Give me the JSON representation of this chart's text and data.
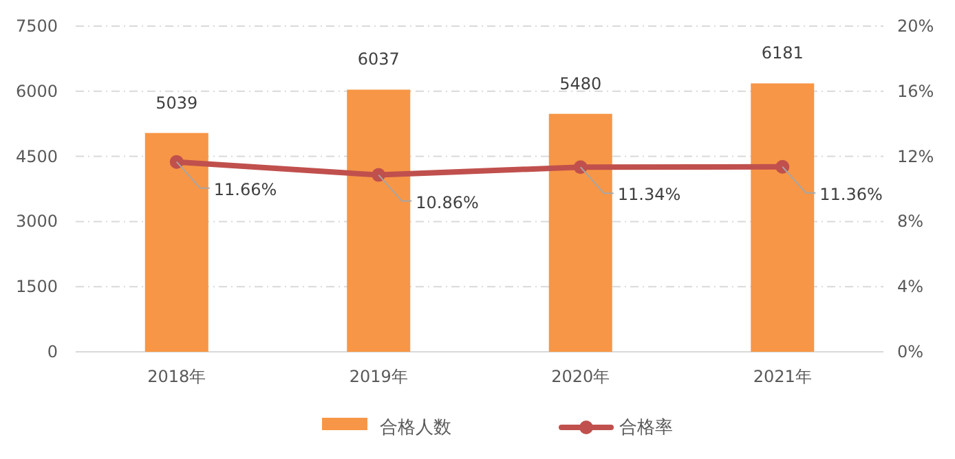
{
  "chart_data": {
    "type": "bar",
    "categories": [
      "2018年",
      "2019年",
      "2020年",
      "2021年"
    ],
    "series": [
      {
        "name": "合格人数",
        "color": "#f79646",
        "values": [
          5039,
          6037,
          5480,
          6181
        ],
        "value_labels": [
          "5039",
          "6037",
          "5480",
          "6181"
        ]
      },
      {
        "name": "合格率",
        "type": "line",
        "axis": "y2",
        "color": "#c0504d",
        "marker": "circle",
        "values": [
          11.66,
          10.86,
          11.34,
          11.36
        ],
        "value_labels": [
          "11.66%",
          "10.86%",
          "11.34%",
          "11.36%"
        ]
      }
    ],
    "ylim": [
      0,
      7500
    ],
    "yticks": [
      0,
      1500,
      3000,
      4500,
      6000,
      7500
    ],
    "y2lim": [
      0,
      20
    ],
    "y2ticks": [
      {
        "value": 0,
        "label": "0%"
      },
      {
        "value": 4,
        "label": "4%"
      },
      {
        "value": 8,
        "label": "8%"
      },
      {
        "value": 12,
        "label": "12%"
      },
      {
        "value": 16,
        "label": "16%"
      },
      {
        "value": 20,
        "label": "20%"
      }
    ],
    "grid": "y",
    "legend": "bottom"
  }
}
